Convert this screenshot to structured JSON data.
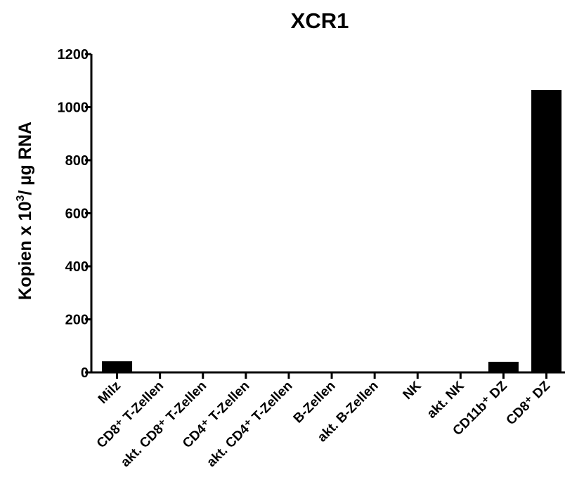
{
  "chart_data": {
    "type": "bar",
    "title": "XCR1",
    "ylabel": "Kopien x 10³/ µg RNA",
    "ylabel_parts": {
      "main": "Kopien x 10",
      "sup": "3",
      "rest": "/ µg RNA"
    },
    "xlabel": "",
    "ylim": [
      0,
      1200
    ],
    "yticks": [
      0,
      200,
      400,
      600,
      800,
      1000,
      1200
    ],
    "y_tick_labels": [
      "0",
      "200",
      "400",
      "600",
      "800",
      "1000",
      "1200"
    ],
    "grid": false,
    "legend": "none",
    "bar_color": "#000000",
    "categories": [
      "Milz",
      "CD8⁺ T-Zellen",
      "akt. CD8⁺ T-Zellen",
      "CD4⁺ T-Zellen",
      "akt. CD4⁺ T-Zellen",
      "B-Zellen",
      "akt. B-Zellen",
      "NK",
      "akt. NK",
      "CD11b⁺ DZ",
      "CD8⁺ DZ"
    ],
    "values": [
      42,
      0,
      0,
      0,
      0,
      0,
      2,
      0,
      0,
      40,
      1065
    ]
  }
}
